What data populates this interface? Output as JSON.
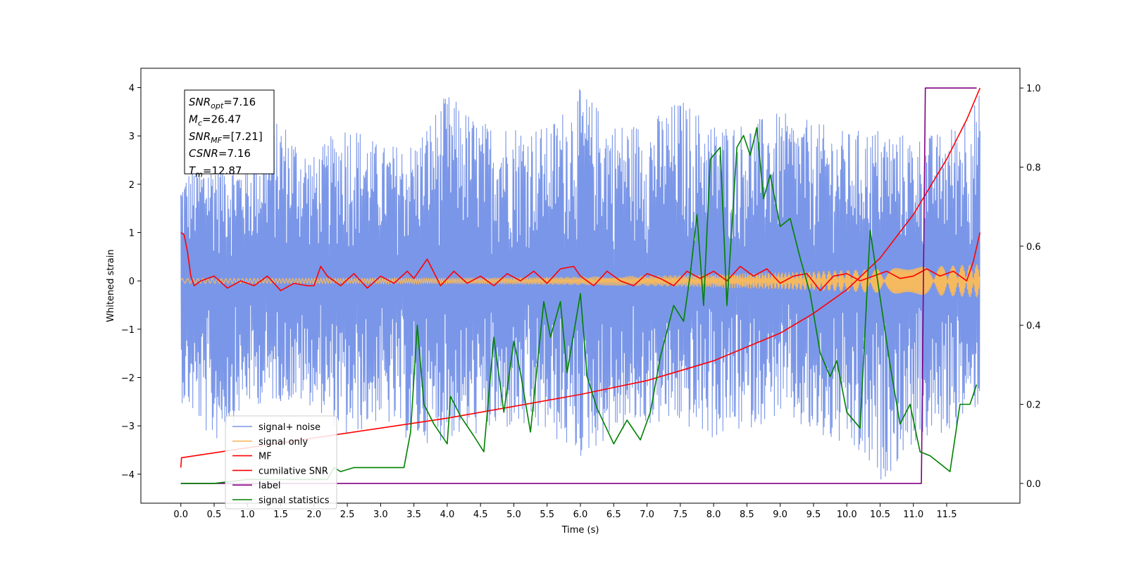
{
  "chart_data": {
    "type": "line",
    "xlabel": "Time (s)",
    "ylabel": "Whitened strain",
    "ylabel_right": "",
    "xlim": [
      -0.6,
      12.6
    ],
    "ylim": [
      -4.6,
      4.4
    ],
    "ylim_right": [
      -0.05,
      1.05
    ],
    "x_ticks": [
      "0.0",
      "0.5",
      "1.0",
      "1.5",
      "2.0",
      "2.5",
      "3.0",
      "3.5",
      "4.0",
      "4.5",
      "5.0",
      "5.5",
      "6.0",
      "6.5",
      "7.0",
      "7.5",
      "8.0",
      "8.5",
      "9.0",
      "9.5",
      "10.0",
      "10.5",
      "11.0",
      "11.5"
    ],
    "y_ticks": [
      "4",
      "3",
      "2",
      "1",
      "0",
      "−1",
      "−2",
      "−3",
      "−4"
    ],
    "y_ticks_right": [
      "1.0",
      "0.8",
      "0.6",
      "0.4",
      "0.2",
      "0.0"
    ],
    "grid": false,
    "legend_position": "lower-left",
    "annotation": [
      {
        "base": "SNR",
        "sub": "opt",
        "value": "=7.16"
      },
      {
        "base": "M",
        "sub": "c",
        "value": "=26.47"
      },
      {
        "base": "SNR",
        "sub": "MF",
        "value": "=[7.21]"
      },
      {
        "base": "CSNR",
        "sub": "",
        "value": "=7.16"
      },
      {
        "base": "T",
        "sub": "m",
        "value": "=12.87"
      }
    ],
    "series": [
      {
        "name": "signal+ noise",
        "color": "#7a96e8",
        "axis": "left",
        "style": "noise-envelope",
        "t_range": [
          0.0,
          12.0
        ],
        "envelope_x": [
          0.0,
          0.5,
          1.0,
          1.5,
          2.0,
          2.5,
          3.0,
          3.5,
          4.0,
          4.5,
          5.0,
          5.5,
          6.0,
          6.5,
          7.0,
          7.5,
          8.0,
          8.5,
          9.0,
          9.5,
          10.0,
          10.5,
          11.0,
          11.5,
          12.0
        ],
        "upper": [
          2.2,
          2.7,
          2.5,
          3.4,
          2.6,
          3.4,
          2.8,
          2.9,
          3.9,
          3.3,
          3.3,
          3.2,
          4.0,
          3.3,
          3.3,
          3.8,
          3.3,
          3.3,
          3.5,
          3.3,
          3.1,
          3.2,
          3.0,
          3.1,
          3.9
        ],
        "lower": [
          -2.5,
          -3.4,
          -2.6,
          -2.5,
          -2.6,
          -3.3,
          -2.9,
          -3.4,
          -3.3,
          -3.2,
          -3.1,
          -3.2,
          -3.7,
          -3.2,
          -3.0,
          -3.0,
          -3.3,
          -3.1,
          -2.8,
          -3.3,
          -3.5,
          -4.2,
          -3.4,
          -3.2,
          -2.6
        ]
      },
      {
        "name": "signal only",
        "color": "#f5b95f",
        "axis": "left",
        "style": "chirp",
        "t_range": [
          0.0,
          12.0
        ],
        "amplitude_start": 0.05,
        "amplitude_end": 0.35
      },
      {
        "name": "MF",
        "color": "#ff0000",
        "axis": "left",
        "x": [
          0.0,
          0.05,
          0.1,
          0.15,
          0.2,
          0.3,
          0.5,
          0.7,
          0.9,
          1.1,
          1.3,
          1.5,
          1.7,
          1.9,
          2.0,
          2.1,
          2.2,
          2.4,
          2.6,
          2.8,
          3.0,
          3.2,
          3.4,
          3.5,
          3.7,
          3.9,
          4.1,
          4.3,
          4.5,
          4.7,
          4.9,
          5.1,
          5.3,
          5.5,
          5.7,
          5.9,
          6.0,
          6.2,
          6.4,
          6.6,
          6.8,
          7.0,
          7.2,
          7.4,
          7.6,
          7.8,
          8.0,
          8.2,
          8.4,
          8.6,
          8.8,
          9.0,
          9.2,
          9.4,
          9.6,
          9.8,
          10.0,
          10.2,
          10.4,
          10.6,
          10.8,
          11.0,
          11.2,
          11.4,
          11.6,
          11.8,
          11.9,
          12.0
        ],
        "y": [
          1.0,
          0.95,
          0.6,
          0.1,
          -0.1,
          0.0,
          0.1,
          -0.15,
          0.0,
          -0.1,
          0.1,
          -0.2,
          -0.05,
          -0.1,
          -0.1,
          0.3,
          0.1,
          -0.1,
          0.15,
          -0.15,
          0.1,
          -0.05,
          0.2,
          0.05,
          0.45,
          -0.1,
          0.2,
          -0.05,
          0.1,
          -0.1,
          0.15,
          0.0,
          0.2,
          -0.05,
          0.25,
          0.3,
          0.1,
          -0.1,
          0.2,
          0.0,
          -0.1,
          0.15,
          0.05,
          -0.1,
          0.2,
          0.05,
          0.2,
          0.0,
          0.3,
          0.1,
          0.25,
          -0.05,
          0.1,
          0.15,
          -0.2,
          0.1,
          0.15,
          0.0,
          0.1,
          0.2,
          0.05,
          0.1,
          0.25,
          0.1,
          0.2,
          0.0,
          0.4,
          1.0
        ]
      },
      {
        "name": "cumilative SNR",
        "color": "#ff0000",
        "axis": "right",
        "x": [
          0.0,
          0.01,
          1.0,
          2.0,
          3.0,
          4.0,
          5.0,
          6.0,
          7.0,
          8.0,
          9.0,
          9.5,
          10.0,
          10.5,
          11.0,
          11.5,
          11.8,
          12.0
        ],
        "y": [
          0.04,
          0.065,
          0.09,
          0.115,
          0.14,
          0.165,
          0.195,
          0.225,
          0.26,
          0.31,
          0.38,
          0.43,
          0.49,
          0.57,
          0.68,
          0.82,
          0.92,
          1.0
        ]
      },
      {
        "name": "label",
        "color": "#800080",
        "axis": "right",
        "x": [
          0.0,
          11.12,
          11.18,
          11.95
        ],
        "y": [
          0.0,
          0.0,
          1.0,
          1.0
        ]
      },
      {
        "name": "signal statistics",
        "color": "#008000",
        "axis": "right",
        "x": [
          0.0,
          0.5,
          1.0,
          1.5,
          2.0,
          2.2,
          2.3,
          2.4,
          2.6,
          2.8,
          3.0,
          3.2,
          3.35,
          3.45,
          3.55,
          3.65,
          3.8,
          4.0,
          4.05,
          4.2,
          4.4,
          4.55,
          4.7,
          4.85,
          5.0,
          5.1,
          5.25,
          5.45,
          5.55,
          5.7,
          5.8,
          6.0,
          6.1,
          6.25,
          6.5,
          6.7,
          6.9,
          7.05,
          7.2,
          7.4,
          7.55,
          7.65,
          7.75,
          7.85,
          7.95,
          8.1,
          8.2,
          8.35,
          8.45,
          8.55,
          8.65,
          8.75,
          8.85,
          9.0,
          9.15,
          9.3,
          9.45,
          9.6,
          9.75,
          9.85,
          10.0,
          10.2,
          10.35,
          10.5,
          10.65,
          10.8,
          10.95,
          11.1,
          11.25,
          11.4,
          11.55,
          11.7,
          11.85,
          11.95
        ],
        "y": [
          0.0,
          0.0,
          0.01,
          0.01,
          0.01,
          0.01,
          0.04,
          0.03,
          0.04,
          0.04,
          0.04,
          0.04,
          0.04,
          0.13,
          0.4,
          0.2,
          0.15,
          0.1,
          0.22,
          0.17,
          0.12,
          0.08,
          0.37,
          0.18,
          0.36,
          0.28,
          0.13,
          0.46,
          0.37,
          0.46,
          0.28,
          0.48,
          0.27,
          0.19,
          0.1,
          0.16,
          0.11,
          0.18,
          0.32,
          0.45,
          0.41,
          0.53,
          0.68,
          0.45,
          0.82,
          0.85,
          0.45,
          0.85,
          0.88,
          0.83,
          0.9,
          0.72,
          0.78,
          0.65,
          0.67,
          0.57,
          0.48,
          0.33,
          0.27,
          0.31,
          0.18,
          0.14,
          0.64,
          0.47,
          0.3,
          0.15,
          0.2,
          0.08,
          0.07,
          0.05,
          0.03,
          0.2,
          0.2,
          0.25
        ]
      }
    ]
  }
}
